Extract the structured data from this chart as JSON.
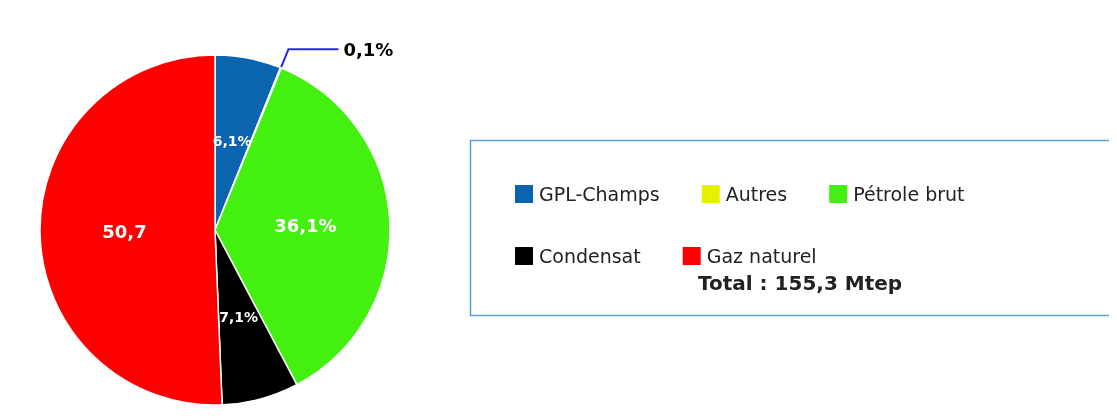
{
  "chart_data": {
    "type": "pie",
    "categories": [
      "GPL-Champs",
      "Autres",
      "Pétrole brut",
      "Condensat",
      "Gaz naturel"
    ],
    "values": [
      6.1,
      0.1,
      36.1,
      7.1,
      50.7
    ],
    "colors": [
      "#0a64b0",
      "#e6f000",
      "#44f010",
      "#000000",
      "#ff0000"
    ],
    "value_labels": [
      "6,1%",
      "0,1%",
      "36,1%",
      "7,1%",
      "50,7"
    ],
    "legend": "right",
    "annotations": [
      "Total : 155,3 Mtep"
    ]
  }
}
